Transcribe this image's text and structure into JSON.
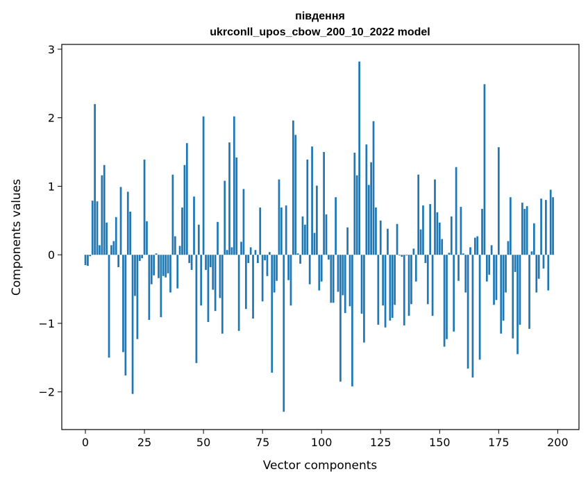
{
  "chart_data": {
    "type": "bar",
    "title": "південня",
    "subtitle": "ukrconll_upos_cbow_200_10_2022 model",
    "xlabel": "Vector components",
    "ylabel": "Components values",
    "xlim": [
      -10,
      209
    ],
    "ylim": [
      -2.55,
      3.07
    ],
    "xticks": [
      0,
      25,
      50,
      75,
      100,
      125,
      150,
      175,
      200
    ],
    "xtick_labels": [
      "0",
      "25",
      "50",
      "75",
      "100",
      "125",
      "150",
      "175",
      "200"
    ],
    "yticks": [
      -2,
      -1,
      0,
      1,
      2,
      3
    ],
    "ytick_labels": [
      "−2",
      "−1",
      "0",
      "1",
      "2",
      "3"
    ],
    "bar_color": "#1f77b4",
    "grid": false,
    "legend": "none",
    "values": [
      -0.15,
      -0.16,
      -0.02,
      0.79,
      2.2,
      0.78,
      0.14,
      1.16,
      1.31,
      0.47,
      -1.5,
      0.14,
      0.2,
      0.55,
      -0.18,
      0.99,
      -1.42,
      -1.76,
      0.92,
      0.63,
      -2.03,
      -0.6,
      -1.23,
      -0.09,
      -0.05,
      1.39,
      0.49,
      -0.95,
      -0.43,
      -0.3,
      0.02,
      -0.34,
      -0.91,
      -0.31,
      -0.33,
      -0.27,
      -0.55,
      1.17,
      0.27,
      -0.49,
      0.13,
      0.69,
      1.31,
      1.63,
      -0.12,
      -0.22,
      0.85,
      -1.58,
      0.44,
      -0.74,
      2.02,
      -0.22,
      -0.98,
      -0.18,
      -0.51,
      -0.82,
      0.48,
      -0.63,
      -1.15,
      1.08,
      0.07,
      1.64,
      0.11,
      2.02,
      1.42,
      -1.11,
      0.19,
      0.96,
      -0.79,
      -0.12,
      0.11,
      -0.93,
      0.07,
      -0.12,
      0.69,
      -0.68,
      -0.08,
      -0.31,
      0.04,
      -1.72,
      -0.55,
      -0.38,
      1.1,
      0.69,
      -2.29,
      0.72,
      -0.37,
      -0.74,
      1.96,
      1.75,
      0.02,
      -0.13,
      0.56,
      0.44,
      1.39,
      -0.43,
      1.58,
      0.32,
      1.01,
      -0.52,
      -0.39,
      1.5,
      0.59,
      -0.07,
      -0.7,
      -0.7,
      0.84,
      -0.54,
      -1.85,
      -0.59,
      -0.85,
      0.4,
      -0.75,
      -1.92,
      1.49,
      1.16,
      2.82,
      -0.86,
      -1.28,
      1.61,
      1.02,
      1.35,
      1.95,
      0.69,
      -1.02,
      0.5,
      -0.74,
      -1.06,
      0.38,
      -0.96,
      -0.92,
      -0.73,
      0.45,
      -0.01,
      -0.03,
      -1.03,
      -0.01,
      -0.89,
      -0.72,
      0.09,
      -0.39,
      1.17,
      0.37,
      0.72,
      -0.12,
      -0.72,
      0.74,
      -0.89,
      1.1,
      0.62,
      0.47,
      0.23,
      -1.34,
      -1.23,
      0.03,
      0.56,
      -1.12,
      1.28,
      -0.38,
      0.7,
      0.02,
      -0.55,
      -1.66,
      0.11,
      -1.79,
      0.25,
      0.27,
      -1.53,
      0.67,
      2.49,
      -0.39,
      -0.29,
      0.14,
      -0.73,
      -0.66,
      1.57,
      -1.15,
      -0.96,
      -0.55,
      0.2,
      0.84,
      -1.22,
      -0.25,
      -1.45,
      -1.02,
      0.76,
      0.67,
      0.71,
      -1.08,
      0.05,
      0.46,
      -0.55,
      -0.35,
      0.82,
      -0.2,
      0.8,
      -0.52,
      0.95,
      0.84
    ]
  }
}
